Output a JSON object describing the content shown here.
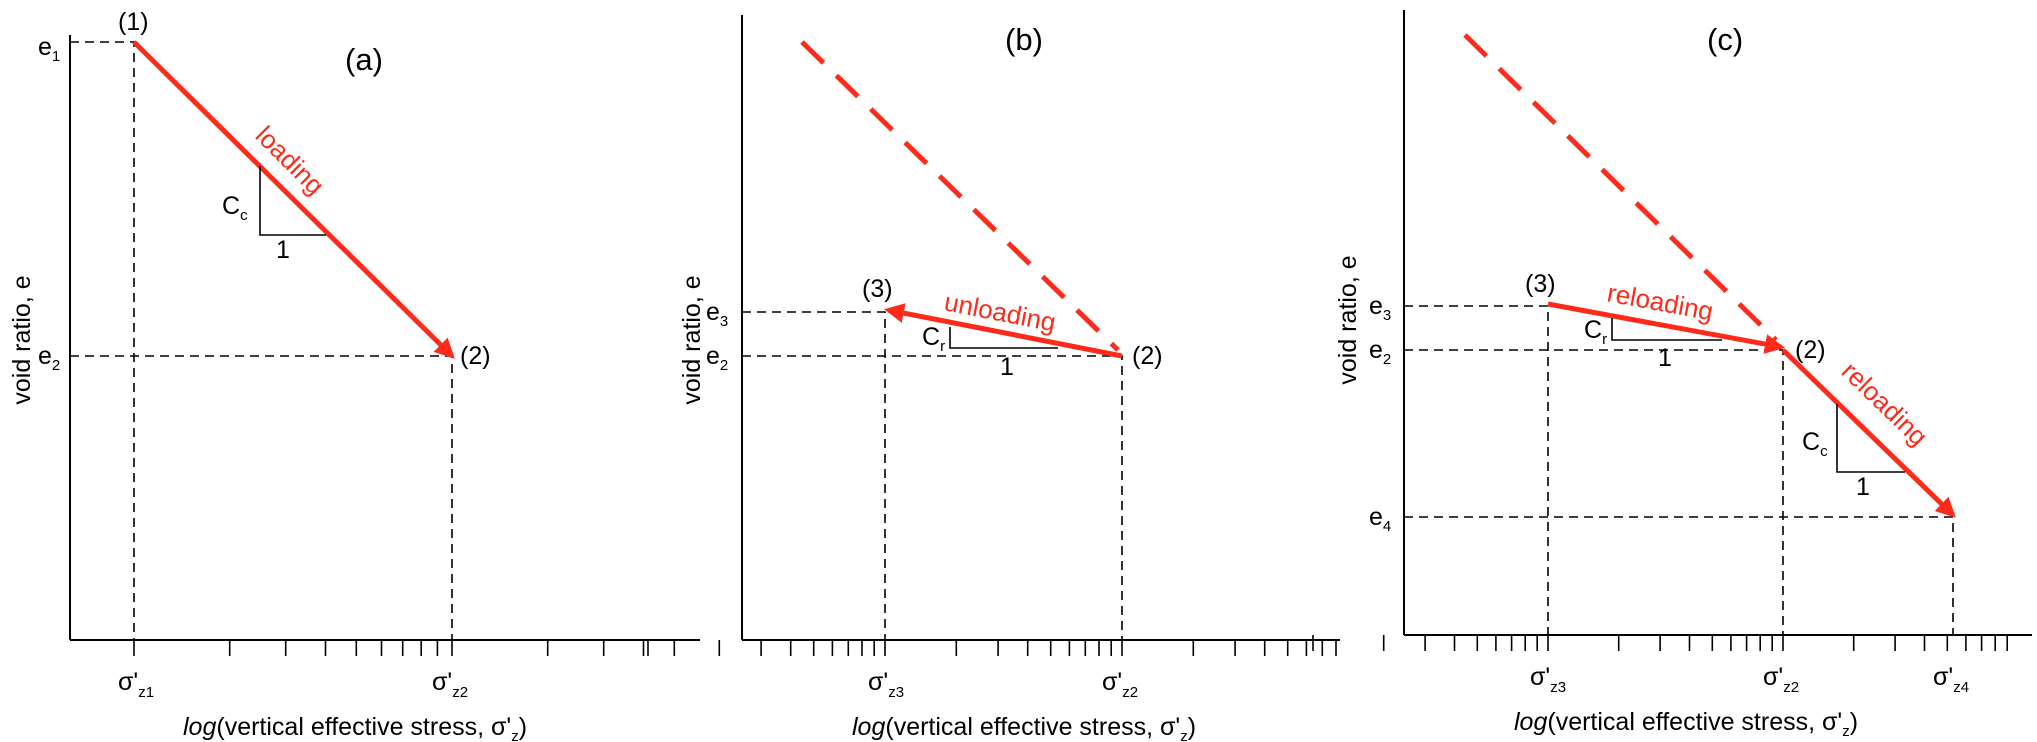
{
  "panel_a": {
    "tag": "(a)",
    "y_axis_label": "void ratio, e",
    "x_axis_label_italic": "log",
    "x_axis_label_rest": "(vertical effective stress, σ'",
    "x_axis_label_sub": "z",
    "x_axis_label_close": ")",
    "e1": "e",
    "e1_sub": "1",
    "e2": "e",
    "e2_sub": "2",
    "p1": "(1)",
    "p2": "(2)",
    "s1": "σ'",
    "s1_sub": "z1",
    "s2": "σ'",
    "s2_sub": "z2",
    "curve_label": "loading",
    "slope_c": "C",
    "slope_c_sub": "c",
    "slope_one": "1"
  },
  "panel_b": {
    "tag": "(b)",
    "y_axis_label": "void ratio, e",
    "x_axis_label_italic": "log",
    "x_axis_label_rest": "(vertical effective stress, σ'",
    "x_axis_label_sub": "z",
    "x_axis_label_close": ")",
    "e3": "e",
    "e3_sub": "3",
    "e2": "e",
    "e2_sub": "2",
    "p3": "(3)",
    "p2": "(2)",
    "s3": "σ'",
    "s3_sub": "z3",
    "s2": "σ'",
    "s2_sub": "z2",
    "curve_label": "unloading",
    "slope_c": "C",
    "slope_c_sub": "r",
    "slope_one": "1"
  },
  "panel_c": {
    "tag": "(c)",
    "y_axis_label": "void ratio, e",
    "x_axis_label_italic": "log",
    "x_axis_label_rest": "(vertical effective stress, σ'",
    "x_axis_label_sub": "z",
    "x_axis_label_close": ")",
    "e3": "e",
    "e3_sub": "3",
    "e2": "e",
    "e2_sub": "2",
    "e4": "e",
    "e4_sub": "4",
    "p3": "(3)",
    "p2": "(2)",
    "s3": "σ'",
    "s3_sub": "z3",
    "s2": "σ'",
    "s2_sub": "z2",
    "s4": "σ'",
    "s4_sub": "z4",
    "curve_label_1": "reloading",
    "curve_label_2": "reloading",
    "slope_c1": "C",
    "slope_c1_sub": "r",
    "slope_one_1": "1",
    "slope_c2": "C",
    "slope_c2_sub": "c",
    "slope_one_2": "1"
  },
  "colors": {
    "curve": "#ff2a1a",
    "axes": "#000000"
  }
}
